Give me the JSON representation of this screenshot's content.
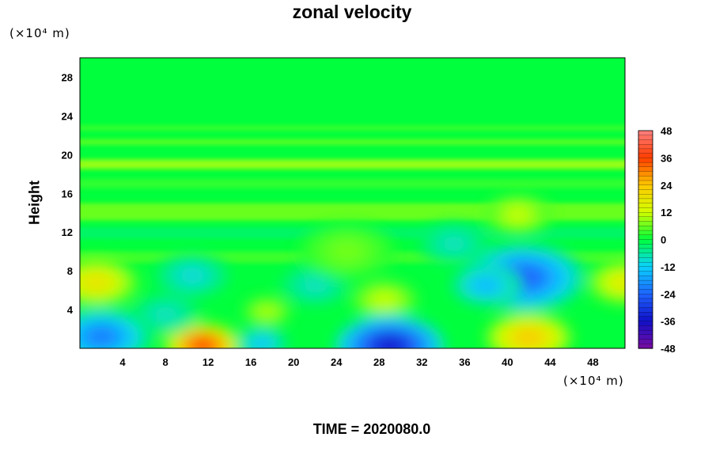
{
  "chart_data": {
    "type": "heatmap",
    "title": "zonal velocity",
    "ylabel": "Height",
    "x_unit": "(×10⁴ m)",
    "y_unit": "(×10⁴ m)",
    "footer": "TIME = 2020080.0",
    "xlim": [
      0,
      51
    ],
    "ylim": [
      0,
      30
    ],
    "x_ticks": [
      4,
      8,
      12,
      16,
      20,
      24,
      28,
      32,
      36,
      40,
      44,
      48
    ],
    "y_ticks": [
      4,
      8,
      12,
      16,
      20,
      24,
      28
    ],
    "colorbar": {
      "levels": [
        48,
        36,
        24,
        12,
        0,
        -12,
        -24,
        -36,
        -48
      ],
      "range": [
        -48,
        48
      ],
      "colors": [
        "#7a0aa0",
        "#1010c8",
        "#1e64ff",
        "#0ad2ff",
        "#00ff3c",
        "#d2ff00",
        "#ffc800",
        "#ff3c00",
        "#ff8080"
      ]
    },
    "features": [
      {
        "x": 1.5,
        "y": 6.8,
        "value": 22
      },
      {
        "x": 51,
        "y": 6.8,
        "value": 20
      },
      {
        "x": 11.5,
        "y": 0.3,
        "value": 44
      },
      {
        "x": 17.5,
        "y": 3.8,
        "value": 12
      },
      {
        "x": 28.5,
        "y": 5.0,
        "value": 14
      },
      {
        "x": 42.0,
        "y": 1.1,
        "value": 28
      },
      {
        "x": 29.0,
        "y": 0.2,
        "value": -42
      },
      {
        "x": 41.5,
        "y": 7.3,
        "value": -30
      },
      {
        "x": 2.0,
        "y": 1.2,
        "value": -26
      },
      {
        "x": 38.0,
        "y": 6.5,
        "value": -18
      },
      {
        "x": 10.5,
        "y": 7.5,
        "value": -12
      },
      {
        "x": 22.0,
        "y": 6.5,
        "value": -10
      },
      {
        "x": 8.0,
        "y": 3.5,
        "value": -10
      },
      {
        "x": 35.0,
        "y": 10.8,
        "value": -10
      },
      {
        "x": 17.0,
        "y": 0.5,
        "value": -16
      },
      {
        "x": 41.0,
        "y": 13.8,
        "value": 14
      },
      {
        "x": 25.0,
        "y": 10.0,
        "value": 8
      }
    ]
  }
}
